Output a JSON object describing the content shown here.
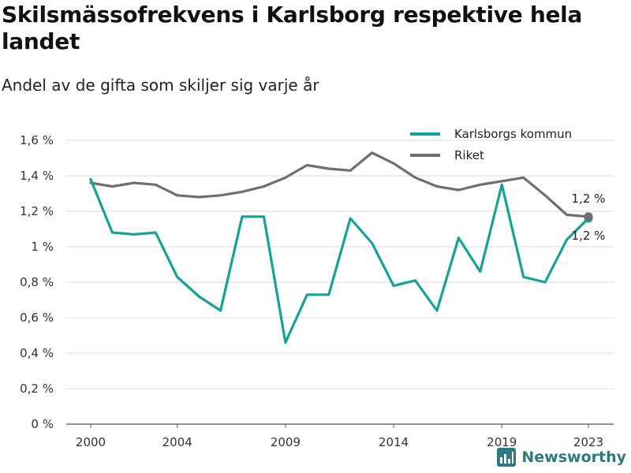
{
  "header": {
    "title": "Skilsmässofrekvens i Karlsborg respektive hela landet",
    "subtitle": "Andel av de gifta som skiljer sig varje år"
  },
  "brand": {
    "name": "Newsworthy",
    "icon": "newsworthy-logo-icon",
    "color": "#2b7a7f"
  },
  "chart_data": {
    "type": "line",
    "title": "Skilsmässofrekvens i Karlsborg respektive hela landet",
    "subtitle": "Andel av de gifta som skiljer sig varje år",
    "x": [
      2000,
      2001,
      2002,
      2003,
      2004,
      2005,
      2006,
      2007,
      2008,
      2009,
      2010,
      2011,
      2012,
      2013,
      2014,
      2015,
      2016,
      2017,
      2018,
      2019,
      2020,
      2021,
      2022,
      2023
    ],
    "x_ticks": [
      "2000",
      "2004",
      "2009",
      "2014",
      "2019",
      "2023"
    ],
    "y_ticks": [
      "0 %",
      "0,2 %",
      "0,4 %",
      "0,6 %",
      "0,8 %",
      "1 %",
      "1,2 %",
      "1,4 %",
      "1,6 %"
    ],
    "ylim": [
      0,
      1.6
    ],
    "grid": true,
    "legend_position": "top-right",
    "series": [
      {
        "name": "Karlsborgs kommun",
        "color": "#13a398",
        "values": [
          1.38,
          1.08,
          1.07,
          1.08,
          0.83,
          0.72,
          0.64,
          1.17,
          1.17,
          0.46,
          0.73,
          0.73,
          1.16,
          1.02,
          0.78,
          0.81,
          0.64,
          1.05,
          0.86,
          1.35,
          0.83,
          0.8,
          1.04,
          1.16
        ],
        "end_label": "1,2 %"
      },
      {
        "name": "Riket",
        "color": "#6e6e73",
        "values": [
          1.36,
          1.34,
          1.36,
          1.35,
          1.29,
          1.28,
          1.29,
          1.31,
          1.34,
          1.39,
          1.46,
          1.44,
          1.43,
          1.53,
          1.47,
          1.39,
          1.34,
          1.32,
          1.35,
          1.37,
          1.39,
          1.29,
          1.18,
          1.17
        ],
        "end_label": "1,2 %"
      }
    ]
  }
}
